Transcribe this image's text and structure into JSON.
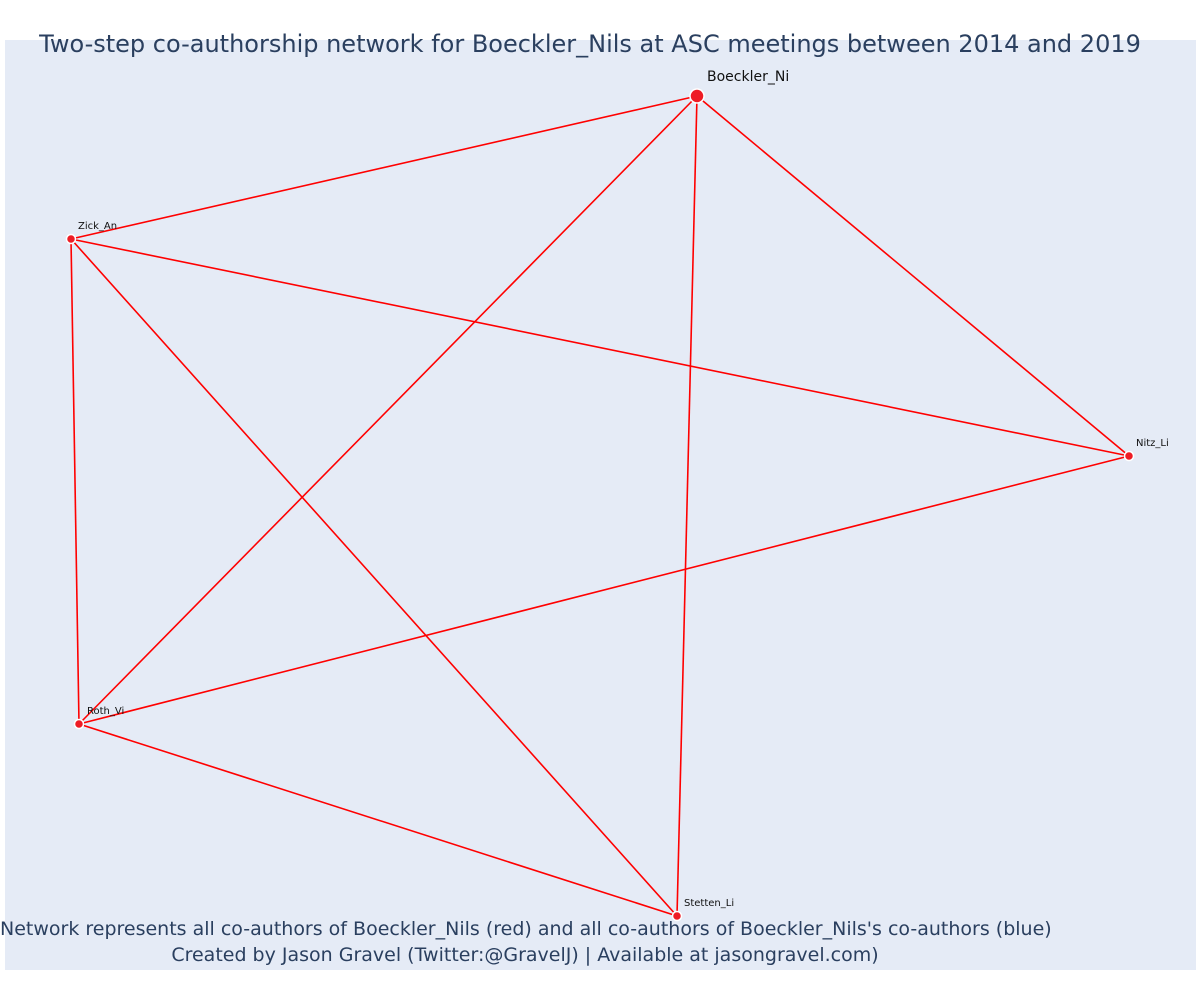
{
  "title": "Two-step co-authorship network for Boeckler_Nils at ASC meetings between 2014 and 2019",
  "caption": {
    "line1": "Network represents all co-authors of Boeckler_Nils (red) and all co-authors of Boeckler_Nils's co-authors (blue)",
    "line2": "Created by Jason Gravel (Twitter:@GravelJ) | Available at jasongravel.com)"
  },
  "colors": {
    "edge": "#ff0000",
    "node": "#ee1c25",
    "background": "#e5ebf6",
    "text": "#2a3f5f"
  },
  "network": {
    "nodes": [
      {
        "id": "Boeckler_Ni",
        "label": "Boeckler_Ni",
        "role": "focal"
      },
      {
        "id": "Zick_An",
        "label": "Zick_An",
        "role": "co-author"
      },
      {
        "id": "Nitz_Li",
        "label": "Nitz_Li",
        "role": "co-author"
      },
      {
        "id": "Roth_Vi",
        "label": "Roth_Vi",
        "role": "co-author"
      },
      {
        "id": "Stetten_Li",
        "label": "Stetten_Li",
        "role": "co-author"
      }
    ],
    "edges": [
      [
        "Boeckler_Ni",
        "Zick_An"
      ],
      [
        "Boeckler_Ni",
        "Roth_Vi"
      ],
      [
        "Boeckler_Ni",
        "Stetten_Li"
      ],
      [
        "Boeckler_Ni",
        "Nitz_Li"
      ],
      [
        "Zick_An",
        "Nitz_Li"
      ],
      [
        "Zick_An",
        "Roth_Vi"
      ],
      [
        "Zick_An",
        "Stetten_Li"
      ],
      [
        "Roth_Vi",
        "Nitz_Li"
      ],
      [
        "Roth_Vi",
        "Stetten_Li"
      ]
    ]
  }
}
